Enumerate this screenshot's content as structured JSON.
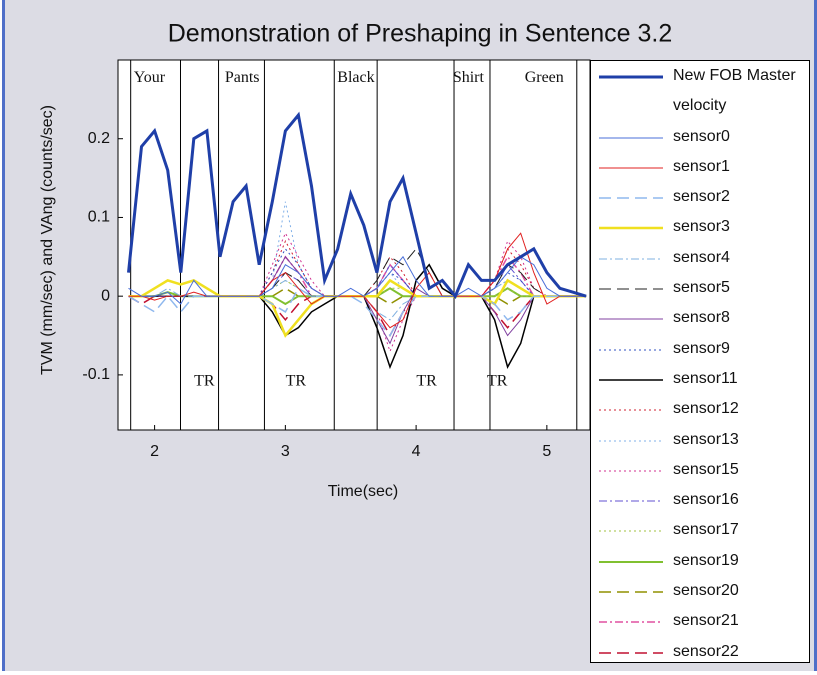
{
  "chart_data": {
    "type": "line",
    "title": "Demonstration of Preshaping in Sentence 3.2",
    "x_label": "Time(sec)",
    "y_label": "TVM (mm/sec) and VAng (counts/sec)",
    "xlim": [
      1.72,
      5.33
    ],
    "ylim": [
      -0.17,
      0.3
    ],
    "xticks": [
      2,
      3,
      4,
      5
    ],
    "yticks": [
      -0.1,
      0,
      0.1,
      0.2
    ],
    "x": [
      1.8,
      1.9,
      2.0,
      2.1,
      2.2,
      2.3,
      2.4,
      2.5,
      2.6,
      2.7,
      2.8,
      2.9,
      3.0,
      3.1,
      3.2,
      3.3,
      3.4,
      3.5,
      3.6,
      3.7,
      3.8,
      3.9,
      4.0,
      4.1,
      4.2,
      4.3,
      4.4,
      4.5,
      4.6,
      4.7,
      4.8,
      4.9,
      5.0,
      5.1,
      5.2,
      5.3
    ],
    "vlines": [
      1.817,
      2.198,
      2.489,
      2.84,
      3.374,
      3.702,
      4.29,
      4.565,
      5.229
    ],
    "annotations": [
      {
        "text": "Your",
        "x": 1.96,
        "y": 0.277
      },
      {
        "text": "Pants",
        "x": 2.67,
        "y": 0.277
      },
      {
        "text": "Black",
        "x": 3.54,
        "y": 0.277
      },
      {
        "text": "Shirt",
        "x": 4.4,
        "y": 0.277
      },
      {
        "text": "Green",
        "x": 4.98,
        "y": 0.277
      },
      {
        "text": "TR",
        "x": 2.38,
        "y": -0.109
      },
      {
        "text": "TR",
        "x": 3.08,
        "y": -0.109
      },
      {
        "text": "TR",
        "x": 4.08,
        "y": -0.109
      },
      {
        "text": "TR",
        "x": 4.62,
        "y": -0.109
      }
    ],
    "series": [
      {
        "name": "New FOB Master velocity",
        "color": "#1f3fa8",
        "style": "solid",
        "width": 3,
        "values": [
          0.03,
          0.19,
          0.21,
          0.16,
          0.03,
          0.2,
          0.21,
          0.05,
          0.12,
          0.14,
          0.04,
          0.12,
          0.21,
          0.23,
          0.14,
          0.02,
          0.06,
          0.13,
          0.09,
          0.03,
          0.12,
          0.15,
          0.08,
          0.01,
          0.02,
          0,
          0.04,
          0.02,
          0.02,
          0.04,
          0.05,
          0.06,
          0.03,
          0.01,
          0.005,
          0
        ]
      },
      {
        "name": "sensor0",
        "color": "#4a6fd8",
        "style": "solid",
        "width": 1,
        "values": [
          0.01,
          0,
          0,
          0.005,
          -0.01,
          0.02,
          0,
          0,
          0,
          0,
          0,
          0.01,
          0.04,
          0.03,
          0.01,
          0,
          0,
          0.01,
          0,
          0.01,
          0.03,
          0.05,
          0.02,
          0,
          0,
          0,
          0.01,
          0,
          0.01,
          0.03,
          0.05,
          0.04,
          0.01,
          0,
          0,
          0
        ]
      },
      {
        "name": "sensor1",
        "color": "#e02020",
        "style": "solid",
        "width": 1,
        "values": [
          0,
          0,
          -0.005,
          0,
          0,
          0.005,
          0,
          0,
          0,
          0,
          0,
          0.02,
          0.03,
          0.01,
          -0.01,
          0,
          0,
          0,
          0,
          -0.02,
          -0.04,
          -0.03,
          0.01,
          0.03,
          0,
          0,
          0,
          0,
          0.02,
          0.06,
          0.08,
          0.03,
          -0.01,
          0,
          0,
          0
        ]
      },
      {
        "name": "sensor2",
        "color": "#8fb8ee",
        "style": "dash",
        "width": 1.5,
        "values": [
          0,
          -0.01,
          -0.02,
          0,
          -0.02,
          0,
          0,
          0,
          0,
          0,
          0,
          -0.01,
          -0.02,
          0.01,
          0,
          0,
          0,
          0,
          -0.01,
          -0.03,
          -0.05,
          -0.02,
          0,
          0,
          0,
          0,
          0,
          0,
          -0.01,
          -0.03,
          -0.02,
          0,
          0,
          0,
          0,
          0
        ]
      },
      {
        "name": "sensor3",
        "color": "#f0e020",
        "style": "solid",
        "width": 2.5,
        "values": [
          0,
          0,
          0.01,
          0.02,
          0.015,
          0.02,
          0.01,
          0,
          0,
          0,
          0,
          -0.01,
          -0.05,
          -0.03,
          -0.01,
          0,
          0,
          0,
          0,
          0,
          0.02,
          0.01,
          0,
          0,
          0,
          0,
          0,
          0,
          -0.01,
          0.02,
          0.01,
          0,
          0,
          0,
          0,
          0
        ]
      },
      {
        "name": "sensor4",
        "color": "#7fb0e0",
        "style": "dashdot",
        "width": 1,
        "values": [
          0,
          0,
          0,
          0.01,
          0,
          0,
          0,
          0,
          0,
          0,
          0,
          0.01,
          0.02,
          0.01,
          0,
          0,
          0,
          0,
          0,
          -0.02,
          -0.03,
          -0.01,
          0,
          0,
          0,
          0,
          0,
          0,
          0.01,
          0.02,
          0.01,
          0,
          0,
          0,
          0,
          0
        ]
      },
      {
        "name": "sensor5",
        "color": "#202020",
        "style": "dash",
        "width": 1,
        "values": [
          0,
          0,
          0,
          0,
          0,
          0,
          0,
          0,
          0,
          0,
          0,
          0.01,
          0.03,
          0.02,
          0,
          0,
          0,
          0,
          0,
          0.02,
          0.05,
          0.04,
          0.06,
          0.03,
          0,
          0,
          0,
          0,
          0.01,
          0.04,
          0.03,
          0.01,
          0,
          0,
          0,
          0
        ]
      },
      {
        "name": "sensor8",
        "color": "#8040a0",
        "style": "solid",
        "width": 1,
        "values": [
          0,
          0,
          0,
          0,
          0,
          0,
          0,
          0,
          0,
          0,
          0,
          0.02,
          0.05,
          0.03,
          0.01,
          0,
          0,
          0,
          0,
          -0.03,
          -0.06,
          -0.02,
          0.01,
          0,
          0,
          0,
          0,
          0,
          -0.02,
          -0.05,
          -0.03,
          0,
          0,
          0,
          0,
          0
        ]
      },
      {
        "name": "sensor9",
        "color": "#3050c0",
        "style": "dot",
        "width": 1,
        "values": [
          0,
          0,
          0,
          0,
          0,
          0,
          0,
          0,
          0,
          0,
          0,
          0.03,
          0.06,
          0.04,
          0.01,
          0,
          0,
          0,
          0,
          0.01,
          0.03,
          0.02,
          0,
          0,
          0,
          0,
          0,
          0,
          0.01,
          0.03,
          0.02,
          0,
          0,
          0,
          0,
          0
        ]
      },
      {
        "name": "sensor11",
        "color": "#000000",
        "style": "solid",
        "width": 1.5,
        "values": [
          0,
          0,
          0,
          0,
          0,
          0,
          0,
          0,
          0,
          0,
          0,
          -0.02,
          -0.05,
          -0.04,
          -0.02,
          -0.01,
          0,
          0,
          0,
          -0.04,
          -0.09,
          -0.05,
          0.02,
          0.04,
          0.01,
          0,
          0,
          0,
          -0.03,
          -0.09,
          -0.06,
          0,
          0,
          0,
          0,
          0
        ]
      },
      {
        "name": "sensor12",
        "color": "#d02030",
        "style": "dot",
        "width": 1,
        "values": [
          0,
          0,
          0,
          0,
          0,
          0,
          0,
          0,
          0,
          0,
          0,
          0.03,
          0.07,
          0.04,
          0.01,
          0,
          0,
          0,
          0,
          0.02,
          0.05,
          0.03,
          0,
          0,
          0,
          0,
          0,
          0,
          0.02,
          0.06,
          0.04,
          0.01,
          0,
          0,
          0,
          0
        ]
      },
      {
        "name": "sensor13",
        "color": "#80b0e8",
        "style": "dot",
        "width": 1,
        "values": [
          0,
          0,
          0,
          0,
          0,
          0,
          0,
          0,
          0,
          0,
          0,
          0.02,
          0.12,
          0.04,
          0.01,
          0,
          0,
          0,
          0,
          0.01,
          0.03,
          0.01,
          0,
          0,
          0,
          0,
          0,
          0,
          0.01,
          0.02,
          0.01,
          0,
          0,
          0,
          0,
          0
        ]
      },
      {
        "name": "sensor15",
        "color": "#d03090",
        "style": "dot",
        "width": 1,
        "values": [
          0,
          0,
          0,
          0,
          0,
          0,
          0,
          0,
          0,
          0,
          0,
          0.04,
          0.08,
          0.05,
          0.02,
          0,
          0,
          0,
          0,
          -0.02,
          -0.07,
          -0.03,
          0,
          0,
          0,
          0,
          0,
          0,
          0.02,
          0.07,
          0.05,
          0.01,
          0,
          0,
          0,
          0
        ]
      },
      {
        "name": "sensor16",
        "color": "#6050d0",
        "style": "dashdot",
        "width": 1,
        "values": [
          0,
          0,
          0,
          0,
          0,
          0,
          0,
          0,
          0,
          0,
          0,
          0.01,
          0.03,
          0.02,
          0,
          0,
          0,
          0,
          0,
          0.01,
          0.04,
          0.02,
          0,
          0,
          0,
          0,
          0,
          0,
          0.01,
          0.04,
          0.02,
          0,
          0,
          0,
          0,
          0
        ]
      },
      {
        "name": "sensor17",
        "color": "#a0c040",
        "style": "dot",
        "width": 1,
        "values": [
          0,
          0,
          0,
          0,
          0,
          0,
          0,
          0,
          0,
          0,
          0,
          0.01,
          0.02,
          0.01,
          0,
          0,
          0,
          0,
          0,
          0,
          0.01,
          0.01,
          0,
          0,
          0,
          0,
          0,
          0,
          0,
          0.01,
          0,
          0,
          0,
          0,
          0,
          0
        ]
      },
      {
        "name": "sensor19",
        "color": "#80c030",
        "style": "solid",
        "width": 2,
        "values": [
          0,
          0,
          0,
          0.005,
          0,
          0,
          0,
          0,
          0,
          0,
          0,
          0,
          -0.01,
          0,
          0,
          0,
          0,
          0,
          0,
          0,
          0.01,
          0,
          0,
          0,
          0,
          0,
          0,
          0,
          0,
          0.01,
          0,
          0,
          0,
          0,
          0,
          0
        ]
      },
      {
        "name": "sensor20",
        "color": "#909000",
        "style": "dash",
        "width": 1.5,
        "values": [
          0,
          0,
          0,
          0,
          0,
          0,
          0,
          0,
          0,
          0,
          0,
          0,
          0.01,
          0,
          0,
          0,
          0,
          0,
          0,
          0,
          -0.01,
          0,
          0,
          0,
          0,
          0,
          0,
          0,
          0,
          -0.01,
          0,
          0,
          0,
          0,
          0,
          0
        ]
      },
      {
        "name": "sensor21",
        "color": "#e050a0",
        "style": "dashdot",
        "width": 1.5,
        "values": [
          0,
          0,
          0,
          0,
          0,
          0,
          0,
          0,
          0,
          0,
          0,
          0.02,
          0.05,
          0.03,
          0,
          0,
          0,
          0,
          0,
          0.01,
          0.04,
          0.02,
          0,
          0,
          0,
          0,
          0,
          0,
          0.02,
          0.05,
          0.03,
          0,
          0,
          0,
          0,
          0
        ]
      },
      {
        "name": "sensor22",
        "color": "#c01030",
        "style": "dash",
        "width": 1.5,
        "values": [
          0,
          -0.01,
          0,
          0,
          0,
          0,
          0,
          0,
          0,
          0,
          0,
          -0.01,
          -0.03,
          -0.01,
          0,
          0,
          0,
          0,
          0,
          -0.02,
          -0.05,
          -0.02,
          0,
          0,
          0,
          0,
          0,
          0,
          -0.02,
          -0.04,
          -0.02,
          0,
          0,
          0,
          0,
          0
        ]
      }
    ]
  }
}
